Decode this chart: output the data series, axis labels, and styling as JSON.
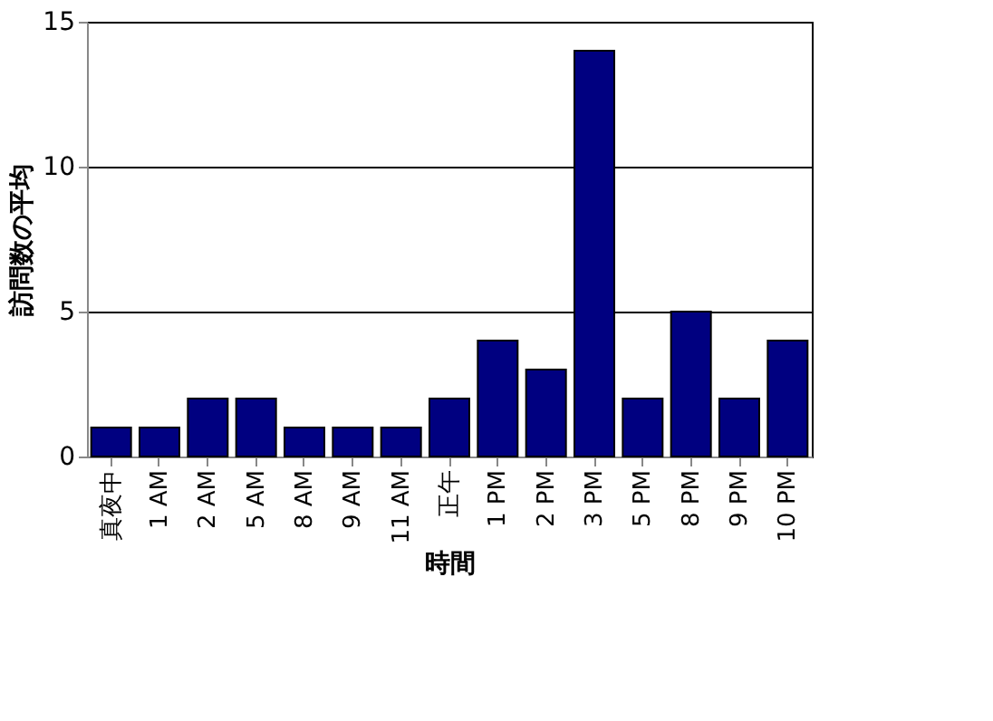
{
  "chart_data": {
    "type": "bar",
    "xlabel": "時間",
    "ylabel": "訪問数の平均",
    "categories": [
      "真夜中",
      "1 AM",
      "2 AM",
      "5 AM",
      "8 AM",
      "9 AM",
      "11 AM",
      "正午",
      "1 PM",
      "2 PM",
      "3 PM",
      "5 PM",
      "8 PM",
      "9 PM",
      "10 PM"
    ],
    "values": [
      1,
      1,
      2,
      2,
      1,
      1,
      1,
      2,
      4,
      3,
      14,
      2,
      5,
      2,
      4
    ],
    "color": "#000080",
    "ylim": [
      0,
      15
    ],
    "yticks": [
      0,
      5,
      10,
      15
    ],
    "grid": "y"
  }
}
